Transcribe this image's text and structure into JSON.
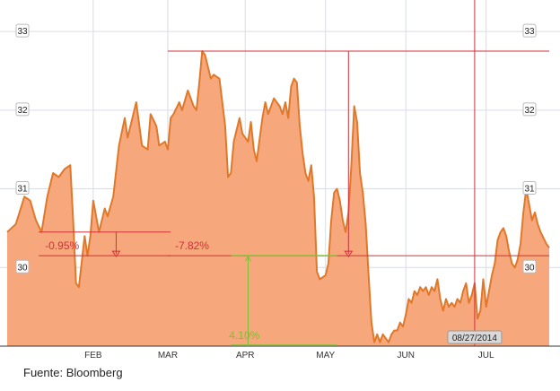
{
  "chart_data": {
    "type": "area",
    "title": "",
    "xlabel": "",
    "ylabel": "",
    "ylim": [
      29.0,
      33.4
    ],
    "x_months": [
      "FEB",
      "MAR",
      "APR",
      "MAY",
      "JUN",
      "JUL"
    ],
    "y_ticks": [
      30,
      31,
      32,
      33
    ],
    "grid": true,
    "series": [
      {
        "color": "#f7a77c",
        "line_color": "#e0782a",
        "points": [
          [
            0,
            30.45
          ],
          [
            3,
            30.55
          ],
          [
            6,
            30.9
          ],
          [
            8,
            30.85
          ],
          [
            10,
            30.6
          ],
          [
            12,
            30.45
          ],
          [
            14,
            30.9
          ],
          [
            16,
            31.2
          ],
          [
            18,
            31.15
          ],
          [
            20,
            31.25
          ],
          [
            22,
            31.3
          ],
          [
            23,
            30.6
          ],
          [
            24,
            29.8
          ],
          [
            25,
            29.75
          ],
          [
            27,
            30.4
          ],
          [
            28,
            30.15
          ],
          [
            29,
            30.4
          ],
          [
            30,
            30.85
          ],
          [
            32,
            30.45
          ],
          [
            34,
            30.75
          ],
          [
            35,
            30.65
          ],
          [
            37,
            30.9
          ],
          [
            39,
            31.55
          ],
          [
            41,
            31.9
          ],
          [
            42,
            31.65
          ],
          [
            44,
            31.95
          ],
          [
            45,
            32.1
          ],
          [
            47,
            31.55
          ],
          [
            49,
            31.5
          ],
          [
            50,
            31.95
          ],
          [
            52,
            31.8
          ],
          [
            53,
            31.55
          ],
          [
            55,
            31.6
          ],
          [
            56,
            31.5
          ],
          [
            57,
            31.9
          ],
          [
            58,
            31.95
          ],
          [
            60,
            32.1
          ],
          [
            61,
            32.0
          ],
          [
            63,
            32.25
          ],
          [
            65,
            32.05
          ],
          [
            66,
            32.0
          ],
          [
            67,
            32.35
          ],
          [
            68,
            32.75
          ],
          [
            69,
            32.7
          ],
          [
            71,
            32.4
          ],
          [
            72,
            32.45
          ],
          [
            74,
            32.4
          ],
          [
            76,
            31.8
          ],
          [
            77,
            31.15
          ],
          [
            78,
            31.2
          ],
          [
            79,
            31.6
          ],
          [
            81,
            31.9
          ],
          [
            82,
            31.7
          ],
          [
            84,
            31.6
          ],
          [
            85,
            31.85
          ],
          [
            86,
            31.5
          ],
          [
            87,
            31.35
          ],
          [
            89,
            31.9
          ],
          [
            90,
            32.1
          ],
          [
            91,
            31.95
          ],
          [
            93,
            32.15
          ],
          [
            95,
            32.05
          ],
          [
            96,
            31.95
          ],
          [
            97,
            32.1
          ],
          [
            98,
            31.9
          ],
          [
            99,
            32.3
          ],
          [
            100,
            32.4
          ],
          [
            101,
            32.35
          ],
          [
            102,
            31.8
          ],
          [
            103,
            31.45
          ],
          [
            104,
            31.2
          ],
          [
            105,
            31.1
          ],
          [
            106,
            31.3
          ],
          [
            107,
            30.9
          ],
          [
            108,
            29.95
          ],
          [
            109,
            29.85
          ],
          [
            111,
            29.9
          ],
          [
            112,
            30.05
          ],
          [
            113,
            30.6
          ],
          [
            114,
            30.95
          ],
          [
            115,
            31.0
          ],
          [
            116,
            30.85
          ],
          [
            117,
            30.6
          ],
          [
            118,
            30.45
          ],
          [
            119,
            30.7
          ],
          [
            120,
            31.3
          ],
          [
            121,
            32.05
          ],
          [
            122,
            31.85
          ],
          [
            123,
            31.2
          ],
          [
            124,
            30.95
          ],
          [
            125,
            30.55
          ],
          [
            126,
            29.9
          ],
          [
            127,
            29.3
          ],
          [
            128,
            29.05
          ],
          [
            129,
            29.15
          ],
          [
            130,
            29.05
          ],
          [
            131,
            29.15
          ],
          [
            132,
            29.1
          ],
          [
            133,
            29.05
          ],
          [
            134,
            29.15
          ],
          [
            135,
            29.2
          ],
          [
            136,
            29.2
          ],
          [
            137,
            29.3
          ],
          [
            138,
            29.25
          ],
          [
            139,
            29.4
          ],
          [
            140,
            29.6
          ],
          [
            141,
            29.55
          ],
          [
            142,
            29.7
          ],
          [
            143,
            29.65
          ],
          [
            144,
            29.75
          ],
          [
            145,
            29.7
          ],
          [
            146,
            29.75
          ],
          [
            147,
            29.65
          ],
          [
            148,
            29.75
          ],
          [
            149,
            29.7
          ],
          [
            150,
            29.85
          ],
          [
            151,
            29.6
          ],
          [
            152,
            29.45
          ],
          [
            153,
            29.6
          ],
          [
            154,
            29.5
          ],
          [
            155,
            29.55
          ],
          [
            156,
            29.5
          ],
          [
            157,
            29.6
          ],
          [
            158,
            29.55
          ],
          [
            159,
            29.7
          ],
          [
            160,
            29.8
          ],
          [
            161,
            29.55
          ],
          [
            162,
            29.65
          ],
          [
            163,
            29.8
          ],
          [
            164,
            29.35
          ],
          [
            165,
            29.45
          ],
          [
            166,
            29.85
          ],
          [
            167,
            29.5
          ],
          [
            168,
            29.7
          ],
          [
            169,
            29.9
          ],
          [
            170,
            30.05
          ],
          [
            171,
            30.35
          ],
          [
            172,
            30.45
          ],
          [
            173,
            30.5
          ],
          [
            174,
            30.4
          ],
          [
            175,
            30.2
          ],
          [
            176,
            30.05
          ],
          [
            177,
            30.0
          ],
          [
            178,
            30.1
          ],
          [
            179,
            30.3
          ],
          [
            180,
            30.7
          ],
          [
            181,
            31.0
          ],
          [
            182,
            30.8
          ],
          [
            183,
            30.6
          ],
          [
            184,
            30.7
          ],
          [
            185,
            30.55
          ],
          [
            186,
            30.45
          ],
          [
            188,
            30.3
          ],
          [
            189,
            30.25
          ]
        ]
      }
    ],
    "x_range": [
      0,
      189
    ],
    "month_positions": [
      30,
      56,
      83,
      111,
      139,
      167
    ],
    "annotations": [
      {
        "label": "-0.95%",
        "color": "#d0303a",
        "kind": "drop",
        "x_from": 11,
        "x_to": 57,
        "y_from": 30.45,
        "y_to": 30.15
      },
      {
        "label": "-7.82%",
        "color": "#d0303a",
        "kind": "drop",
        "x_from": 56,
        "x_to": 189,
        "y_from": 32.75,
        "y_to": 30.15
      },
      {
        "label": "4.10%",
        "color": "#7bc232",
        "kind": "rise",
        "x_from": 78,
        "x_to": 115,
        "y_from": 29.0,
        "y_to": 30.15
      }
    ],
    "date_marker": {
      "label": "08/27/2014",
      "x": 163
    }
  },
  "source_text": "Fuente: Bloomberg"
}
